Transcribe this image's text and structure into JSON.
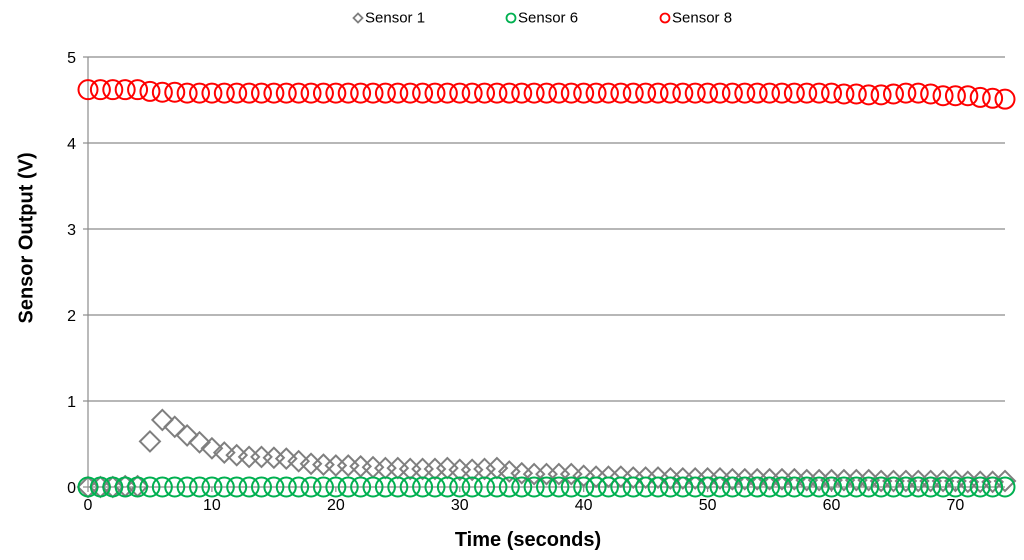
{
  "chart_data": {
    "type": "scatter",
    "title": "",
    "xlabel": "Time (seconds)",
    "ylabel": "Sensor Output (V)",
    "xlim": [
      0,
      74
    ],
    "ylim": [
      0,
      5
    ],
    "x_ticks": [
      0,
      10,
      20,
      30,
      40,
      50,
      60,
      70
    ],
    "y_ticks": [
      0,
      1,
      2,
      3,
      4,
      5
    ],
    "grid": "horizontal",
    "legend_position": "top",
    "series": [
      {
        "name": "Sensor 1",
        "marker": "diamond",
        "color": "#7f7f7f",
        "x": [
          0,
          1,
          2,
          3,
          4,
          5,
          6,
          7,
          8,
          9,
          10,
          11,
          12,
          13,
          14,
          15,
          16,
          17,
          18,
          19,
          20,
          21,
          22,
          23,
          24,
          25,
          26,
          27,
          28,
          29,
          30,
          31,
          32,
          33,
          34,
          35,
          36,
          37,
          38,
          39,
          40,
          41,
          42,
          43,
          44,
          45,
          46,
          47,
          48,
          49,
          50,
          51,
          52,
          53,
          54,
          55,
          56,
          57,
          58,
          59,
          60,
          61,
          62,
          63,
          64,
          65,
          66,
          67,
          68,
          69,
          70,
          71,
          72,
          73,
          74
        ],
        "y": [
          0.0,
          0.0,
          0.0,
          0.01,
          0.01,
          0.53,
          0.78,
          0.7,
          0.6,
          0.52,
          0.45,
          0.4,
          0.37,
          0.35,
          0.35,
          0.34,
          0.33,
          0.3,
          0.27,
          0.26,
          0.25,
          0.25,
          0.24,
          0.23,
          0.22,
          0.22,
          0.21,
          0.21,
          0.21,
          0.22,
          0.2,
          0.2,
          0.21,
          0.22,
          0.18,
          0.16,
          0.15,
          0.15,
          0.15,
          0.15,
          0.13,
          0.12,
          0.12,
          0.12,
          0.11,
          0.11,
          0.11,
          0.1,
          0.1,
          0.1,
          0.1,
          0.1,
          0.09,
          0.09,
          0.09,
          0.09,
          0.09,
          0.09,
          0.08,
          0.08,
          0.08,
          0.08,
          0.08,
          0.08,
          0.07,
          0.07,
          0.07,
          0.07,
          0.07,
          0.07,
          0.07,
          0.06,
          0.06,
          0.06,
          0.07
        ]
      },
      {
        "name": "Sensor 6",
        "marker": "circle",
        "color": "#00b050",
        "x": [
          0,
          1,
          2,
          3,
          4,
          5,
          6,
          7,
          8,
          9,
          10,
          11,
          12,
          13,
          14,
          15,
          16,
          17,
          18,
          19,
          20,
          21,
          22,
          23,
          24,
          25,
          26,
          27,
          28,
          29,
          30,
          31,
          32,
          33,
          34,
          35,
          36,
          37,
          38,
          39,
          40,
          41,
          42,
          43,
          44,
          45,
          46,
          47,
          48,
          49,
          50,
          51,
          52,
          53,
          54,
          55,
          56,
          57,
          58,
          59,
          60,
          61,
          62,
          63,
          64,
          65,
          66,
          67,
          68,
          69,
          70,
          71,
          72,
          73,
          74
        ],
        "y": [
          0.0,
          0.0,
          0.0,
          0.0,
          0.0,
          0.0,
          0.0,
          0.0,
          0.0,
          0.0,
          0.0,
          0.0,
          0.0,
          0.0,
          0.0,
          0.0,
          0.0,
          0.0,
          0.0,
          0.0,
          0.0,
          0.0,
          0.0,
          0.0,
          0.0,
          0.0,
          0.0,
          0.0,
          0.0,
          0.0,
          0.0,
          0.0,
          0.0,
          0.0,
          0.0,
          0.0,
          0.0,
          0.0,
          0.0,
          0.0,
          0.0,
          0.0,
          0.0,
          0.0,
          0.0,
          0.0,
          0.0,
          0.0,
          0.0,
          0.0,
          0.0,
          0.0,
          0.0,
          0.0,
          0.0,
          0.0,
          0.0,
          0.0,
          0.0,
          0.0,
          0.0,
          0.0,
          0.0,
          0.0,
          0.0,
          0.0,
          0.0,
          0.0,
          0.0,
          0.0,
          0.0,
          0.0,
          0.0,
          0.0,
          0.0
        ]
      },
      {
        "name": "Sensor 8",
        "marker": "circle",
        "color": "#ff0000",
        "x": [
          0,
          1,
          2,
          3,
          4,
          5,
          6,
          7,
          8,
          9,
          10,
          11,
          12,
          13,
          14,
          15,
          16,
          17,
          18,
          19,
          20,
          21,
          22,
          23,
          24,
          25,
          26,
          27,
          28,
          29,
          30,
          31,
          32,
          33,
          34,
          35,
          36,
          37,
          38,
          39,
          40,
          41,
          42,
          43,
          44,
          45,
          46,
          47,
          48,
          49,
          50,
          51,
          52,
          53,
          54,
          55,
          56,
          57,
          58,
          59,
          60,
          61,
          62,
          63,
          64,
          65,
          66,
          67,
          68,
          69,
          70,
          71,
          72,
          73,
          74
        ],
        "y": [
          4.62,
          4.62,
          4.62,
          4.62,
          4.62,
          4.6,
          4.59,
          4.59,
          4.58,
          4.58,
          4.58,
          4.58,
          4.58,
          4.58,
          4.58,
          4.58,
          4.58,
          4.58,
          4.58,
          4.58,
          4.58,
          4.58,
          4.58,
          4.58,
          4.58,
          4.58,
          4.58,
          4.58,
          4.58,
          4.58,
          4.58,
          4.58,
          4.58,
          4.58,
          4.58,
          4.58,
          4.58,
          4.58,
          4.58,
          4.58,
          4.58,
          4.58,
          4.58,
          4.58,
          4.58,
          4.58,
          4.58,
          4.58,
          4.58,
          4.58,
          4.58,
          4.58,
          4.58,
          4.58,
          4.58,
          4.58,
          4.58,
          4.58,
          4.58,
          4.58,
          4.58,
          4.57,
          4.57,
          4.56,
          4.56,
          4.57,
          4.58,
          4.58,
          4.57,
          4.55,
          4.55,
          4.55,
          4.53,
          4.52,
          4.51
        ]
      }
    ]
  }
}
